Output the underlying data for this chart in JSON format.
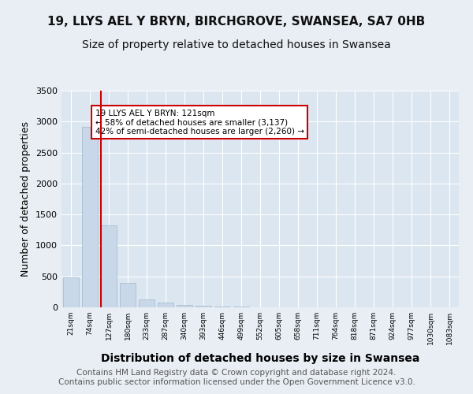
{
  "title1": "19, LLYS AEL Y BRYN, BIRCHGROVE, SWANSEA, SA7 0HB",
  "title2": "Size of property relative to detached houses in Swansea",
  "xlabel": "Distribution of detached houses by size in Swansea",
  "ylabel": "Number of detached properties",
  "footer": "Contains HM Land Registry data © Crown copyright and database right 2024.\nContains public sector information licensed under the Open Government Licence v3.0.",
  "categories": [
    "21sqm",
    "74sqm",
    "127sqm",
    "180sqm",
    "233sqm",
    "287sqm",
    "340sqm",
    "393sqm",
    "446sqm",
    "499sqm",
    "552sqm",
    "605sqm",
    "658sqm",
    "711sqm",
    "764sqm",
    "818sqm",
    "871sqm",
    "924sqm",
    "977sqm",
    "1030sqm",
    "1083sqm"
  ],
  "values": [
    490,
    2920,
    1320,
    390,
    130,
    75,
    40,
    25,
    18,
    10,
    5,
    3,
    2,
    2,
    1,
    1,
    0,
    0,
    0,
    0,
    0
  ],
  "bar_color": "#c8d8e8",
  "bar_edgecolor": "#a0b8cc",
  "redline_index": 2,
  "redline_x": 127,
  "annotation_text": "19 LLYS AEL Y BRYN: 121sqm\n← 58% of detached houses are smaller (3,137)\n42% of semi-detached houses are larger (2,260) →",
  "annotation_box_color": "#ffffff",
  "annotation_box_edgecolor": "#cc0000",
  "ylim": [
    0,
    3500
  ],
  "yticks": [
    0,
    500,
    1000,
    1500,
    2000,
    2500,
    3000,
    3500
  ],
  "bg_color": "#e8eef4",
  "plot_bg_color": "#dce6f0",
  "grid_color": "#ffffff",
  "title1_fontsize": 11,
  "title2_fontsize": 10,
  "xlabel_fontsize": 10,
  "ylabel_fontsize": 9,
  "footer_fontsize": 7.5
}
